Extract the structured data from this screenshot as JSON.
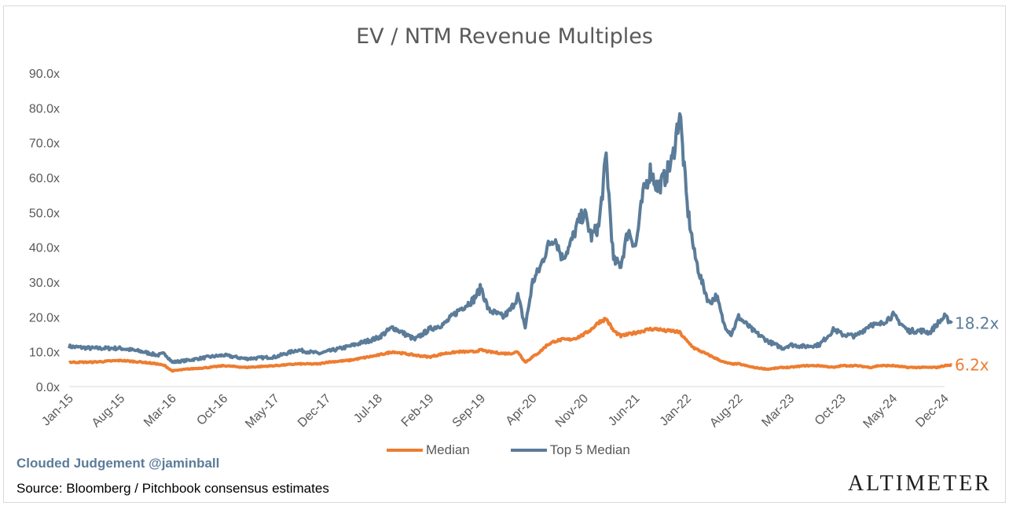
{
  "chart_data": {
    "type": "line",
    "title": "EV / NTM Revenue Multiples",
    "ylim": [
      0,
      90
    ],
    "y_ticks": [
      "0.0x",
      "10.0x",
      "20.0x",
      "30.0x",
      "40.0x",
      "50.0x",
      "60.0x",
      "70.0x",
      "80.0x",
      "90.0x"
    ],
    "x_ticks": [
      "Jan-15",
      "Aug-15",
      "Mar-16",
      "Oct-16",
      "May-17",
      "Dec-17",
      "Jul-18",
      "Feb-19",
      "Sep-19",
      "Apr-20",
      "Nov-20",
      "Jun-21",
      "Jan-22",
      "Aug-22",
      "Mar-23",
      "Oct-23",
      "May-24",
      "Dec-24"
    ],
    "x": [
      "Jan-15",
      "Apr-15",
      "Aug-15",
      "Nov-15",
      "Jan-16",
      "Feb-16",
      "Mar-16",
      "May-16",
      "Aug-16",
      "Oct-16",
      "Jan-17",
      "May-17",
      "Aug-17",
      "Nov-17",
      "Dec-17",
      "Mar-18",
      "Jul-18",
      "Sep-18",
      "Dec-18",
      "Feb-19",
      "Apr-19",
      "Jun-19",
      "Aug-19",
      "Sep-19",
      "Oct-19",
      "Dec-19",
      "Jan-20",
      "Feb-20",
      "Mar-20",
      "Apr-20",
      "May-20",
      "Jun-20",
      "Jul-20",
      "Aug-20",
      "Sep-20",
      "Oct-20",
      "Nov-20",
      "Dec-20",
      "Jan-21",
      "Feb-21",
      "Mar-21",
      "Apr-21",
      "May-21",
      "Jun-21",
      "Jul-21",
      "Aug-21",
      "Sep-21",
      "Oct-21",
      "Nov-21",
      "Dec-21",
      "Jan-22",
      "Feb-22",
      "Mar-22",
      "Apr-22",
      "May-22",
      "Jun-22",
      "Jul-22",
      "Aug-22",
      "Oct-22",
      "Dec-22",
      "Feb-23",
      "Mar-23",
      "May-23",
      "Jul-23",
      "Sep-23",
      "Oct-23",
      "Dec-23",
      "Feb-24",
      "Mar-24",
      "May-24",
      "Jul-24",
      "Sep-24",
      "Oct-24",
      "Nov-24",
      "Dec-24",
      "Jan-25"
    ],
    "series": [
      {
        "name": "Median",
        "color": "#ed7d31",
        "end_label": "6.2x",
        "values": [
          7.0,
          7.0,
          7.5,
          7.0,
          6.5,
          6.0,
          4.5,
          5.0,
          5.5,
          6.0,
          5.5,
          6.0,
          6.5,
          6.5,
          7.0,
          7.5,
          9.0,
          10.0,
          9.0,
          8.5,
          9.5,
          10.0,
          10.0,
          10.5,
          10.0,
          9.5,
          9.5,
          10.0,
          7.0,
          8.5,
          10.0,
          12.0,
          13.0,
          13.5,
          13.5,
          14.0,
          15.0,
          16.5,
          18.5,
          19.5,
          16.0,
          14.5,
          15.0,
          15.5,
          16.0,
          16.5,
          16.5,
          16.0,
          16.0,
          15.5,
          13.0,
          11.0,
          10.0,
          9.0,
          8.0,
          7.0,
          6.5,
          6.5,
          5.5,
          5.0,
          5.5,
          5.5,
          6.0,
          6.0,
          5.5,
          6.0,
          6.0,
          5.5,
          6.0,
          6.0,
          5.5,
          5.5,
          5.5,
          5.5,
          6.0,
          6.2
        ]
      },
      {
        "name": "Top 5 Median",
        "color": "#5b7c99",
        "end_label": "18.2x",
        "values": [
          11.5,
          11.0,
          11.0,
          10.0,
          9.0,
          9.5,
          7.0,
          7.5,
          8.5,
          9.0,
          8.0,
          8.5,
          10.5,
          9.5,
          10.0,
          11.5,
          14.0,
          17.0,
          13.5,
          16.5,
          18.0,
          22.0,
          25.0,
          28.5,
          22.0,
          20.0,
          22.0,
          26.0,
          17.0,
          30.0,
          34.0,
          40.0,
          43.0,
          37.0,
          40.0,
          46.0,
          50.0,
          43.0,
          46.0,
          66.0,
          36.0,
          35.0,
          45.0,
          40.0,
          55.0,
          62.0,
          57.0,
          60.0,
          65.0,
          79.0,
          52.0,
          38.0,
          30.0,
          24.0,
          26.0,
          18.0,
          15.0,
          20.0,
          16.0,
          13.0,
          11.0,
          12.0,
          11.5,
          12.0,
          16.5,
          15.0,
          14.5,
          18.0,
          17.5,
          20.5,
          16.0,
          16.0,
          15.5,
          18.0,
          20.0,
          18.2
        ]
      }
    ],
    "legend_position": "bottom",
    "gridlines": false
  },
  "legend": {
    "median": "Median",
    "top5": "Top 5 Median"
  },
  "footer": {
    "credit": "Clouded Judgement @jaminball",
    "source": "Source: Bloomberg / Pitchbook consensus estimates",
    "logo": "ALTIMETER"
  }
}
